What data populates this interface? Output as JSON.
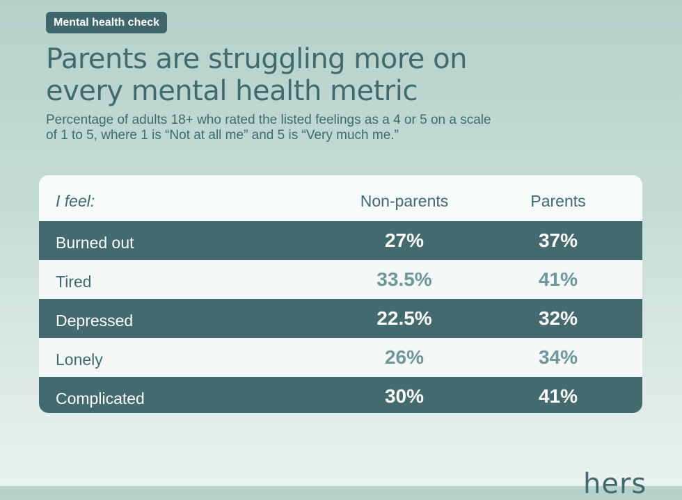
{
  "tag": "Mental health check",
  "title": "Parents are struggling more on every mental health metric",
  "subtitle": "Percentage of adults 18+ who rated the listed feelings as a 4 or 5 on a scale of 1 to 5, where 1 is “Not at all me” and 5 is “Very much me.”",
  "brand": "hers",
  "colors": {
    "dark_row": "#436a6e",
    "light_row": "#f4f9f7",
    "text": "#3f6a6e",
    "muted_value": "#6e979a"
  },
  "chart_data": {
    "type": "table",
    "columns": [
      "I feel:",
      "Non-parents",
      "Parents"
    ],
    "rows": [
      {
        "label": "Burned out",
        "non_parents": "27%",
        "parents": "37%"
      },
      {
        "label": "Tired",
        "non_parents": "33.5%",
        "parents": "41%"
      },
      {
        "label": "Depressed",
        "non_parents": "22.5%",
        "parents": "32%"
      },
      {
        "label": "Lonely",
        "non_parents": "26%",
        "parents": "34%"
      },
      {
        "label": "Complicated",
        "non_parents": "30%",
        "parents": "41%"
      }
    ]
  }
}
